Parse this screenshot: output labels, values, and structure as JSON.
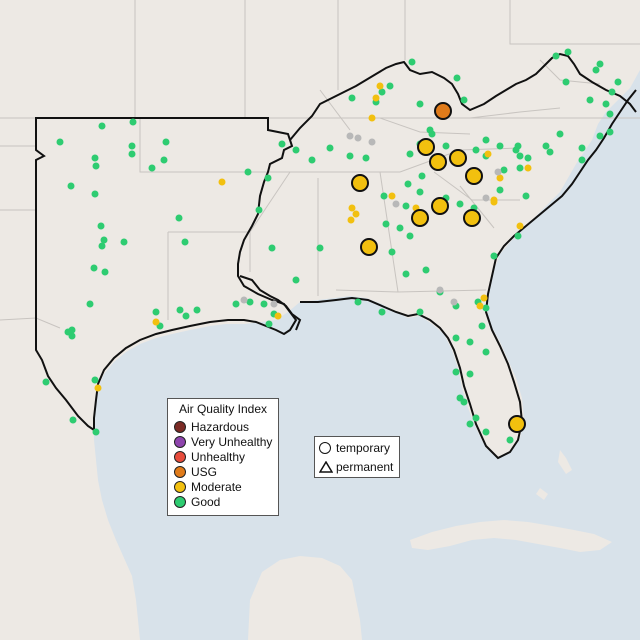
{
  "colors": {
    "ocean": "#d8e2ea",
    "land": "#ede9e4",
    "border": "#c8c4c0",
    "region_outline": "#111111",
    "good": "#2ecc71",
    "moderate": "#f2c00f",
    "usg": "#e07b1a",
    "unhealthy": "#e74c3c",
    "very_unhealthy": "#8e44ad",
    "hazardous": "#7b2b25",
    "no_data": "#b8b8b8"
  },
  "aqi_legend": {
    "title": "Air Quality Index",
    "items": [
      {
        "label": "Hazardous",
        "color": "#7b2b25"
      },
      {
        "label": "Very Unhealthy",
        "color": "#8e44ad"
      },
      {
        "label": "Unhealthy",
        "color": "#e74c3c"
      },
      {
        "label": "USG",
        "color": "#e07b1a"
      },
      {
        "label": "Moderate",
        "color": "#f2c00f"
      },
      {
        "label": "Good",
        "color": "#2ecc71"
      }
    ]
  },
  "type_legend": {
    "temporary_label": "temporary",
    "permanent_label": "permanent"
  }
}
